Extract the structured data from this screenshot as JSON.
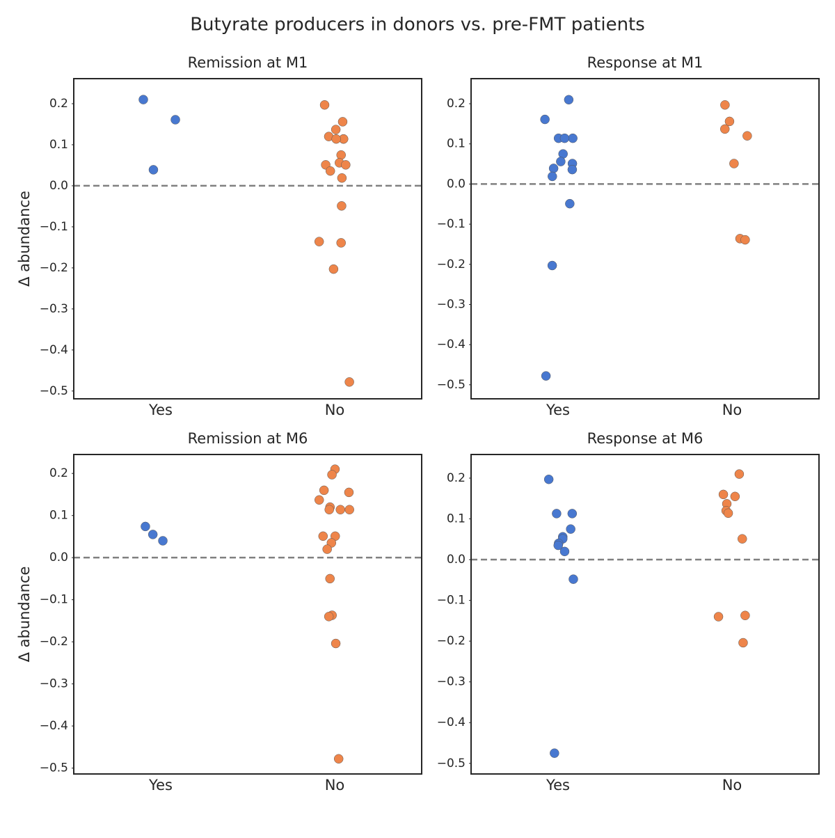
{
  "title": "Butyrate producers in donors vs. pre-FMT patients",
  "chart_data": [
    {
      "type": "strip",
      "title": "Remission at M1",
      "ylabel": "Δ abundance",
      "categories": [
        "Yes",
        "No"
      ],
      "colors": [
        "#4878d0",
        "#ee854a"
      ],
      "values": [
        [
          0.21,
          0.161,
          0.039
        ],
        [
          0.197,
          0.156,
          0.137,
          0.12,
          0.114,
          0.114,
          0.114,
          0.075,
          0.056,
          0.051,
          0.051,
          0.036,
          0.019,
          -0.049,
          -0.136,
          -0.139,
          -0.203,
          -0.478
        ]
      ],
      "hline": 0,
      "ylim": [
        -0.519,
        0.261
      ],
      "yticks": [
        {
          "value": -0.5,
          "label": "−0.5"
        },
        {
          "value": -0.4,
          "label": "−0.4"
        },
        {
          "value": -0.3,
          "label": "−0.3"
        },
        {
          "value": -0.2,
          "label": "−0.2"
        },
        {
          "value": -0.1,
          "label": "−0.1"
        },
        {
          "value": 0,
          "label": "0.0"
        },
        {
          "value": 0.1,
          "label": "0.1"
        },
        {
          "value": 0.2,
          "label": "0.2"
        }
      ]
    },
    {
      "type": "strip",
      "title": "Response at M1",
      "categories": [
        "Yes",
        "No"
      ],
      "colors": [
        "#4878d0",
        "#ee854a"
      ],
      "values": [
        [
          0.21,
          0.161,
          0.114,
          0.114,
          0.114,
          0.075,
          0.056,
          0.051,
          0.036,
          0.039,
          0.019,
          -0.049,
          -0.203,
          -0.478
        ],
        [
          0.197,
          0.156,
          0.137,
          0.12,
          0.051,
          -0.136,
          -0.139
        ]
      ],
      "hline": 0,
      "ylim": [
        -0.535,
        0.2625
      ],
      "yticks": [
        {
          "value": -0.5,
          "label": "−0.5"
        },
        {
          "value": -0.4,
          "label": "−0.4"
        },
        {
          "value": -0.3,
          "label": "−0.3"
        },
        {
          "value": -0.2,
          "label": "−0.2"
        },
        {
          "value": -0.1,
          "label": "−0.1"
        },
        {
          "value": 0,
          "label": "0.0"
        },
        {
          "value": 0.1,
          "label": "0.1"
        },
        {
          "value": 0.2,
          "label": "0.2"
        }
      ]
    },
    {
      "type": "strip",
      "title": "Remission at M6",
      "ylabel": "Δ abundance",
      "categories": [
        "Yes",
        "No"
      ],
      "colors": [
        "#4878d0",
        "#ee854a"
      ],
      "values": [
        [
          0.074,
          0.055,
          0.04
        ],
        [
          0.21,
          0.197,
          0.16,
          0.155,
          0.137,
          0.12,
          0.114,
          0.114,
          0.114,
          0.051,
          0.051,
          0.035,
          0.02,
          -0.05,
          -0.137,
          -0.14,
          -0.204,
          -0.478
        ]
      ],
      "hline": 0,
      "ylim": [
        -0.514,
        0.245
      ],
      "yticks": [
        {
          "value": -0.5,
          "label": "−0.5"
        },
        {
          "value": -0.4,
          "label": "−0.4"
        },
        {
          "value": -0.3,
          "label": "−0.3"
        },
        {
          "value": -0.2,
          "label": "−0.2"
        },
        {
          "value": -0.1,
          "label": "−0.1"
        },
        {
          "value": 0,
          "label": "0.0"
        },
        {
          "value": 0.1,
          "label": "0.1"
        },
        {
          "value": 0.2,
          "label": "0.2"
        }
      ]
    },
    {
      "type": "strip",
      "title": "Response at M6",
      "categories": [
        "Yes",
        "No"
      ],
      "colors": [
        "#4878d0",
        "#ee854a"
      ],
      "values": [
        [
          0.197,
          0.113,
          0.113,
          0.075,
          0.056,
          0.051,
          0.04,
          0.035,
          0.02,
          -0.048,
          -0.475
        ],
        [
          0.21,
          0.16,
          0.155,
          0.137,
          0.12,
          0.114,
          0.051,
          -0.137,
          -0.14,
          -0.204
        ]
      ],
      "hline": 0,
      "ylim": [
        -0.526,
        0.258
      ],
      "yticks": [
        {
          "value": -0.5,
          "label": "−0.5"
        },
        {
          "value": -0.4,
          "label": "−0.4"
        },
        {
          "value": -0.3,
          "label": "−0.3"
        },
        {
          "value": -0.2,
          "label": "−0.2"
        },
        {
          "value": -0.1,
          "label": "−0.1"
        },
        {
          "value": 0,
          "label": "0.0"
        },
        {
          "value": 0.1,
          "label": "0.1"
        },
        {
          "value": 0.2,
          "label": "0.2"
        }
      ]
    }
  ]
}
